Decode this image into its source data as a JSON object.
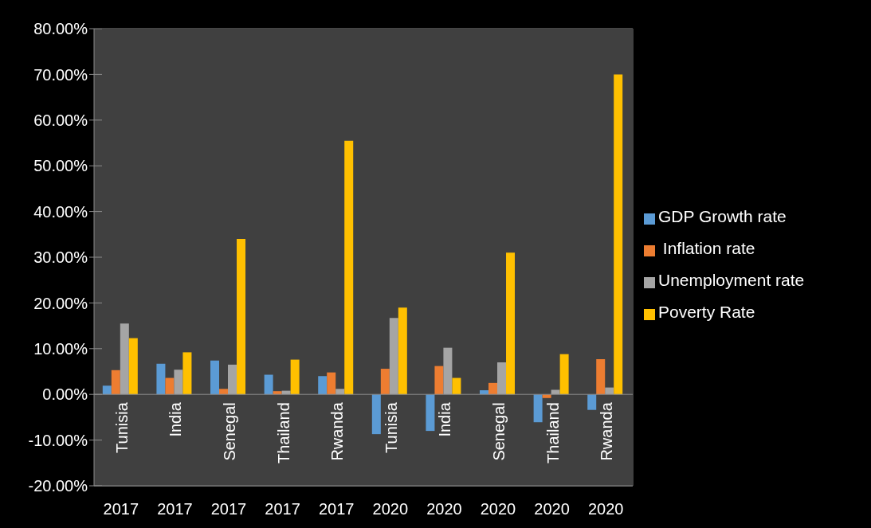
{
  "chart_data": {
    "type": "bar",
    "categories": [
      "Tunisia\n2017",
      "India\n2017",
      "Senegal\n2017",
      "Thailand\n2017",
      "Rwanda\n2017",
      "Tunisia\n2020",
      "India\n2020",
      "Senegal\n2020",
      "Thailand\n2020",
      "Rwanda\n2020"
    ],
    "series": [
      {
        "name": "GDP Growth rate",
        "color": "#5b9bd5",
        "values": [
          1.9,
          6.7,
          7.4,
          4.3,
          4.0,
          -8.7,
          -8.0,
          0.9,
          -6.1,
          -3.4
        ]
      },
      {
        "name": " Inflation rate",
        "color": "#ed7d31",
        "values": [
          5.3,
          3.6,
          1.2,
          0.7,
          4.8,
          5.6,
          6.2,
          2.5,
          -0.8,
          7.7
        ]
      },
      {
        "name": "Unemployment rate",
        "color": "#a5a5a5",
        "values": [
          15.5,
          5.4,
          6.5,
          0.8,
          1.2,
          16.7,
          10.2,
          7.0,
          1.0,
          1.5
        ]
      },
      {
        "name": "Poverty Rate",
        "color": "#ffc000",
        "values": [
          12.3,
          9.2,
          34.0,
          7.6,
          55.5,
          19.0,
          3.6,
          31.0,
          8.8,
          70.0
        ]
      }
    ],
    "ylim": [
      -20,
      80
    ],
    "yticks": [
      {
        "value": -20,
        "label": "-20.00%"
      },
      {
        "value": -10,
        "label": "-10.00%"
      },
      {
        "value": 0,
        "label": "0.00%"
      },
      {
        "value": 10,
        "label": "10.00%"
      },
      {
        "value": 20,
        "label": "20.00%"
      },
      {
        "value": 30,
        "label": "30.00%"
      },
      {
        "value": 40,
        "label": "40.00%"
      },
      {
        "value": 50,
        "label": "50.00%"
      },
      {
        "value": 60,
        "label": "60.00%"
      },
      {
        "value": 70,
        "label": "70.00%"
      },
      {
        "value": 80,
        "label": "80.00%"
      }
    ],
    "grid": "y",
    "legend": "right"
  }
}
